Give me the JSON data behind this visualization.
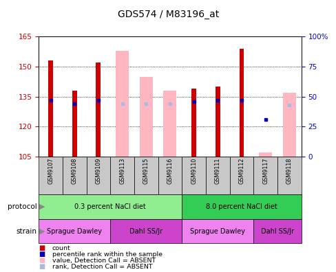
{
  "title": "GDS574 / M83196_at",
  "samples": [
    "GSM9107",
    "GSM9108",
    "GSM9109",
    "GSM9113",
    "GSM9115",
    "GSM9116",
    "GSM9110",
    "GSM9111",
    "GSM9112",
    "GSM9117",
    "GSM9118"
  ],
  "ylim_left": [
    105,
    165
  ],
  "ylim_right": [
    0,
    100
  ],
  "yticks_left": [
    105,
    120,
    135,
    150,
    165
  ],
  "yticks_right": [
    0,
    25,
    50,
    75,
    100
  ],
  "ytick_labels_right": [
    "0",
    "25",
    "50",
    "75",
    "100%"
  ],
  "red_bars": [
    153,
    138,
    152,
    null,
    null,
    null,
    139,
    140,
    159,
    null,
    null
  ],
  "pink_bars": [
    null,
    null,
    null,
    158,
    145,
    138,
    null,
    null,
    null,
    107,
    137
  ],
  "blue_rank_right": [
    47,
    44,
    47,
    null,
    null,
    null,
    46,
    47,
    47,
    31,
    null
  ],
  "lavender_rank_right": [
    null,
    null,
    null,
    44,
    44,
    44,
    null,
    null,
    null,
    null,
    43
  ],
  "protocol_groups": [
    {
      "label": "0.3 percent NaCl diet",
      "start": 0,
      "end": 5,
      "color": "#90EE90"
    },
    {
      "label": "8.0 percent NaCl diet",
      "start": 6,
      "end": 10,
      "color": "#33CC55"
    }
  ],
  "strain_groups": [
    {
      "label": "Sprague Dawley",
      "start": 0,
      "end": 2,
      "color": "#EE82EE"
    },
    {
      "label": "Dahl SS/Jr",
      "start": 3,
      "end": 5,
      "color": "#CC44CC"
    },
    {
      "label": "Sprague Dawley",
      "start": 6,
      "end": 8,
      "color": "#EE82EE"
    },
    {
      "label": "Dahl SS/Jr",
      "start": 9,
      "end": 10,
      "color": "#CC44CC"
    }
  ],
  "red_color": "#CC0000",
  "blue_color": "#0000BB",
  "pink_color": "#FFB6C1",
  "lavender_color": "#AABBDD",
  "bg_color": "#FFFFFF",
  "tick_color_left": "#CC0000",
  "tick_color_right": "#0000CC",
  "gray_bg": "#C8C8C8"
}
